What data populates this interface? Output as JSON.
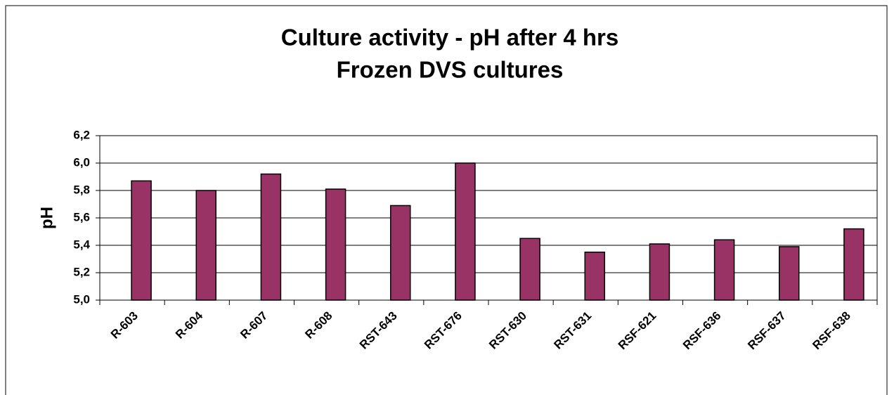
{
  "chart_data": {
    "type": "bar",
    "title": "Culture activity - pH after 4 hrs",
    "subtitle": "Frozen DVS cultures",
    "y_label": "pH",
    "categories": [
      "R-603",
      "R-604",
      "R-607",
      "R-608",
      "RST-643",
      "RST-676",
      "RST-630",
      "RST-631",
      "RSF-621",
      "RSF-636",
      "RSF-637",
      "RSF-638"
    ],
    "values": [
      5.87,
      5.8,
      5.92,
      5.81,
      5.69,
      6.0,
      5.45,
      5.35,
      5.41,
      5.44,
      5.39,
      5.52
    ],
    "color": "#993366",
    "ylim": [
      5.0,
      6.2
    ],
    "yticks": [
      {
        "value": 5.0,
        "label": "5,0"
      },
      {
        "value": 5.2,
        "label": "5,2"
      },
      {
        "value": 5.4,
        "label": "5,4"
      },
      {
        "value": 5.6,
        "label": "5,6"
      },
      {
        "value": 5.8,
        "label": "5,8"
      },
      {
        "value": 6.0,
        "label": "6,0"
      },
      {
        "value": 6.2,
        "label": "6,2"
      }
    ],
    "grid": true
  }
}
